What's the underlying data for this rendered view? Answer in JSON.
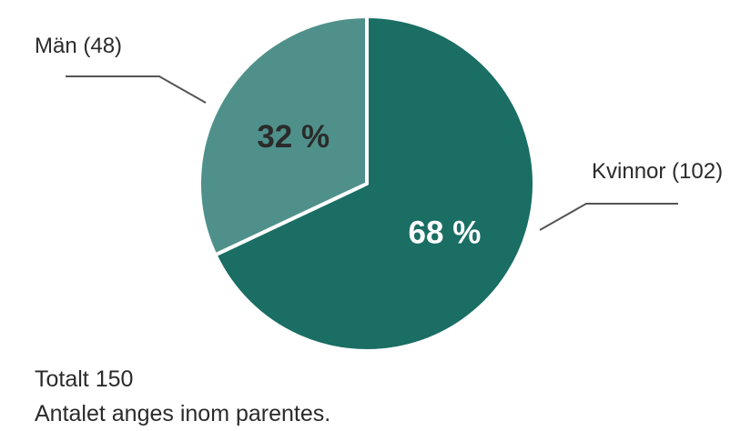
{
  "chart_data": {
    "type": "pie",
    "slices": [
      {
        "label": "Kvinnor (102)",
        "value": 102,
        "percent_label": "68 %",
        "color": "#1a6e64",
        "text_color": "#ffffff"
      },
      {
        "label": "Män (48)",
        "value": 48,
        "percent_label": "32 %",
        "color": "#4f918a",
        "text_color": "#2b2b2b"
      }
    ],
    "start_angle": "12 o'clock",
    "direction": "clockwise",
    "leader_line_color": "#555555"
  },
  "notes": {
    "total": "Totalt 150",
    "info": "Antalet anges inom parentes."
  }
}
